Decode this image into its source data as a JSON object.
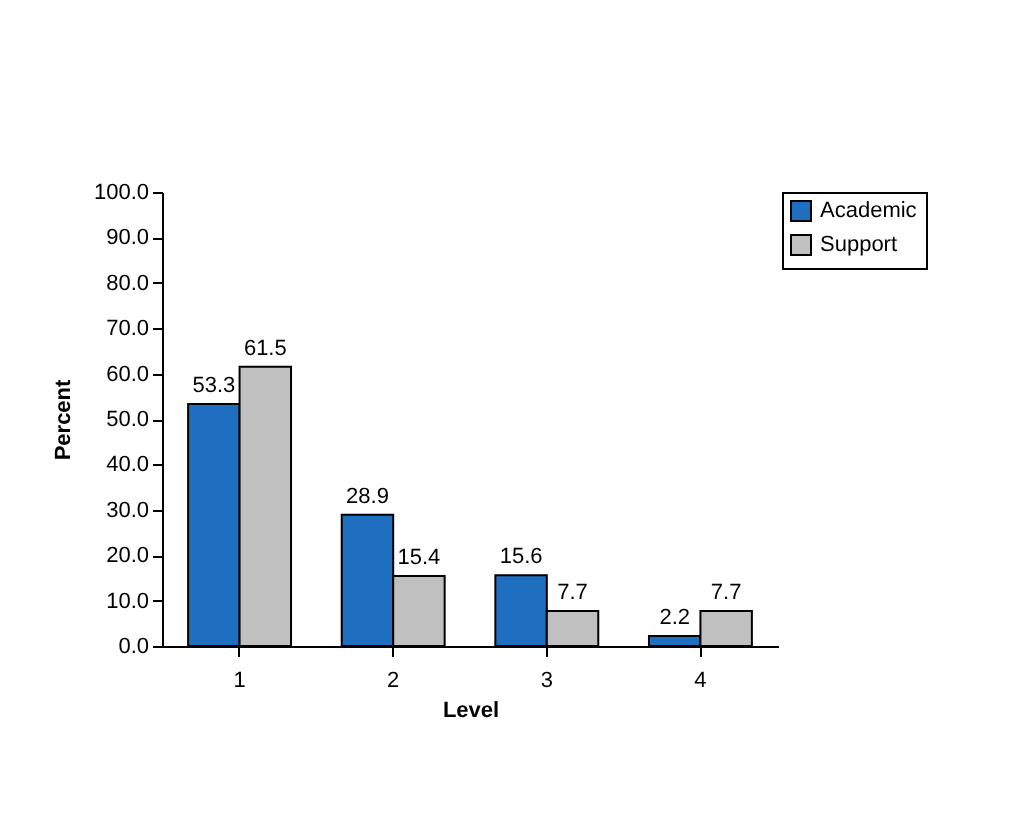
{
  "chart_data": {
    "type": "bar",
    "xlabel": "Level",
    "ylabel": "Percent",
    "categories": [
      "1",
      "2",
      "3",
      "4"
    ],
    "series": [
      {
        "name": "Academic",
        "color": "#1f6fc0",
        "values": [
          53.3,
          28.9,
          15.6,
          2.2
        ]
      },
      {
        "name": "Support",
        "color": "#c0c0c0",
        "values": [
          61.5,
          15.4,
          7.7,
          7.7
        ]
      }
    ],
    "ylim": [
      0,
      100
    ],
    "yticks": [
      {
        "value": 0,
        "label": "0.0"
      },
      {
        "value": 10,
        "label": "10.0"
      },
      {
        "value": 20,
        "label": "20.0"
      },
      {
        "value": 30,
        "label": "30.0"
      },
      {
        "value": 40,
        "label": "40.0"
      },
      {
        "value": 50,
        "label": "50.0"
      },
      {
        "value": 60,
        "label": "60.0"
      },
      {
        "value": 70,
        "label": "70.0"
      },
      {
        "value": 80,
        "label": "80.0"
      },
      {
        "value": 90,
        "label": "90.0"
      },
      {
        "value": 100,
        "label": "100.0"
      }
    ],
    "data_labels": true,
    "legend": "top right",
    "grid": false
  }
}
